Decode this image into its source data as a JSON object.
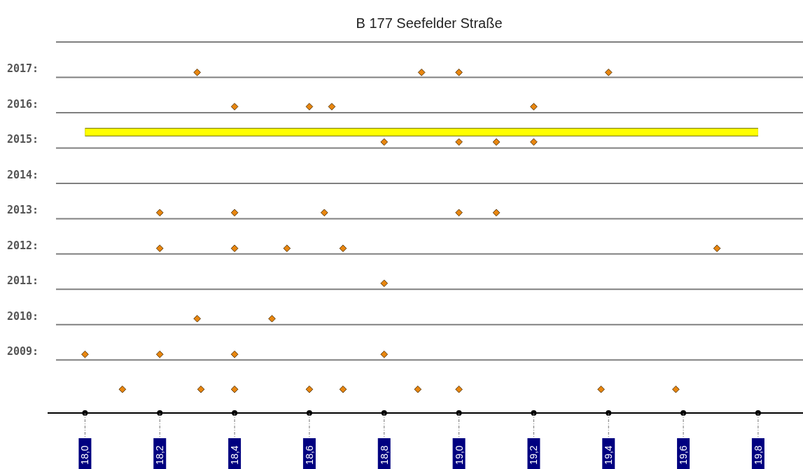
{
  "chart_data": {
    "type": "scatter",
    "title": "B 177 Seefelder Straße",
    "xlim": [
      17.9,
      19.92
    ],
    "xticks": [
      {
        "value": 18.0,
        "label": "18,0"
      },
      {
        "value": 18.2,
        "label": "18,2"
      },
      {
        "value": 18.4,
        "label": "18,4"
      },
      {
        "value": 18.6,
        "label": "18,6"
      },
      {
        "value": 18.8,
        "label": "18,8"
      },
      {
        "value": 19.0,
        "label": "19,0"
      },
      {
        "value": 19.2,
        "label": "19,2"
      },
      {
        "value": 19.4,
        "label": "19,4"
      },
      {
        "value": 19.6,
        "label": "19,6"
      },
      {
        "value": 19.8,
        "label": "19,8"
      }
    ],
    "ylim": [
      2007.5,
      2018
    ],
    "yticks": [
      {
        "value": 2018,
        "label": null
      },
      {
        "value": 2017,
        "label": "2017:"
      },
      {
        "value": 2016,
        "label": "2016:"
      },
      {
        "value": 2015,
        "label": "2015:"
      },
      {
        "value": 2014,
        "label": "2014:"
      },
      {
        "value": 2013,
        "label": "2013:"
      },
      {
        "value": 2012,
        "label": "2012:"
      },
      {
        "value": 2011,
        "label": "2011:"
      },
      {
        "value": 2010,
        "label": "2010:"
      },
      {
        "value": 2009,
        "label": "2009:"
      }
    ],
    "grid": "y",
    "series": [
      {
        "type": "line",
        "color": "#ffff00",
        "x": [
          18.0,
          19.8
        ],
        "values": [
          2015.45,
          2015.45
        ],
        "marker": "none"
      },
      {
        "color": "#e8860f",
        "marker": "diamond",
        "x": [
          18.3,
          18.9,
          19.0,
          19.4,
          18.4,
          18.6,
          18.66,
          19.2,
          18.8,
          19.0,
          19.1,
          19.2,
          18.2,
          18.4,
          18.64,
          19.0,
          19.1,
          18.2,
          18.4,
          18.54,
          18.69,
          19.69,
          18.8,
          18.3,
          18.5,
          18.0,
          18.2,
          18.4,
          18.8,
          18.1,
          18.31,
          18.4,
          18.6,
          18.69,
          18.89,
          19.0,
          19.38,
          19.58
        ],
        "values": [
          2017.14,
          2017.14,
          2017.14,
          2017.14,
          2016.17,
          2016.17,
          2016.17,
          2016.17,
          2015.17,
          2015.17,
          2015.17,
          2015.17,
          2013.17,
          2013.17,
          2013.17,
          2013.17,
          2013.17,
          2012.16,
          2012.16,
          2012.16,
          2012.16,
          2012.16,
          2011.17,
          2010.17,
          2010.17,
          2009.16,
          2009.16,
          2009.16,
          2009.16,
          2008.17,
          2008.17,
          2008.17,
          2008.17,
          2008.17,
          2008.17,
          2008.17,
          2008.17,
          2008.17
        ]
      }
    ]
  }
}
